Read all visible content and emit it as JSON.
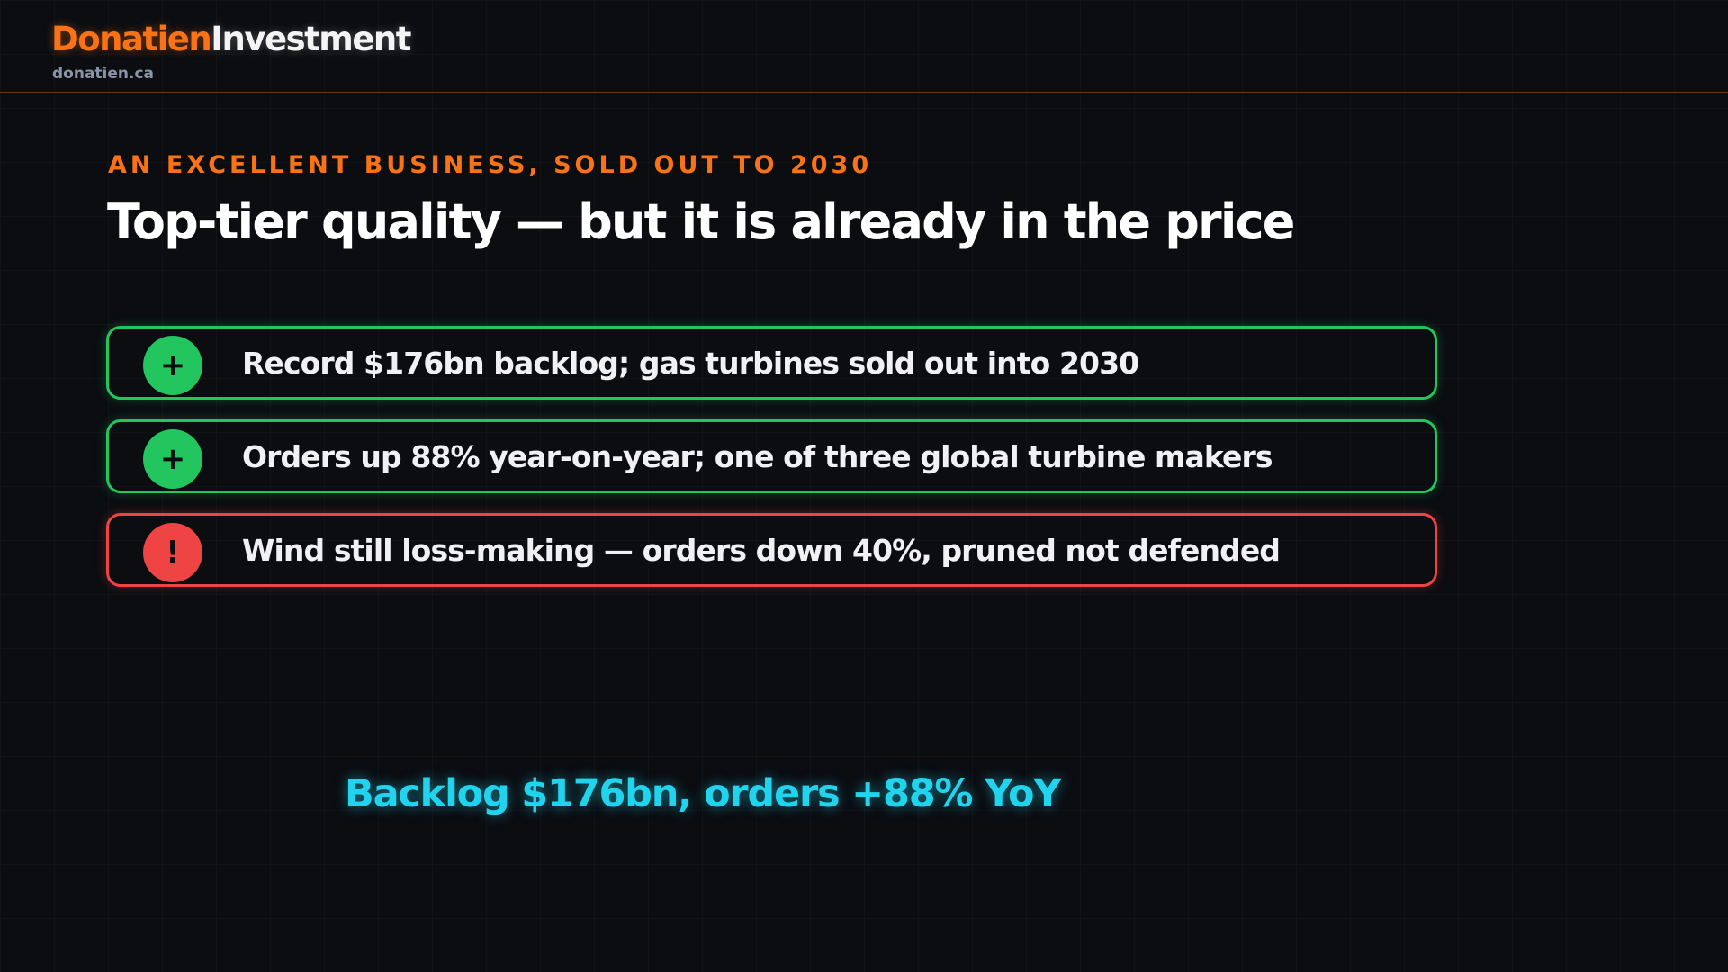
{
  "header": {
    "brand_part1": "Donatien",
    "brand_part2": "Investment",
    "domain": "donatien.ca"
  },
  "slide": {
    "eyebrow": "AN EXCELLENT BUSINESS, SOLD OUT TO 2030",
    "title": "Top-tier quality — but it is already in the price",
    "points": [
      {
        "icon": "+",
        "text": "Record $176bn backlog; gas turbines sold out into 2030",
        "kind": "positive"
      },
      {
        "icon": "+",
        "text": "Orders up 88% year-on-year; one of three global turbine makers",
        "kind": "positive"
      },
      {
        "icon": "!",
        "text": "Wind still loss-making — orders down 40%, pruned not defended",
        "kind": "risk"
      }
    ],
    "callout": "Backlog $176bn, orders +88% YoY"
  },
  "colors": {
    "accent": "#f97316",
    "positive": "#22c55e",
    "risk": "#ef4444",
    "callout": "#22d3ee",
    "background": "#0b0d11"
  }
}
